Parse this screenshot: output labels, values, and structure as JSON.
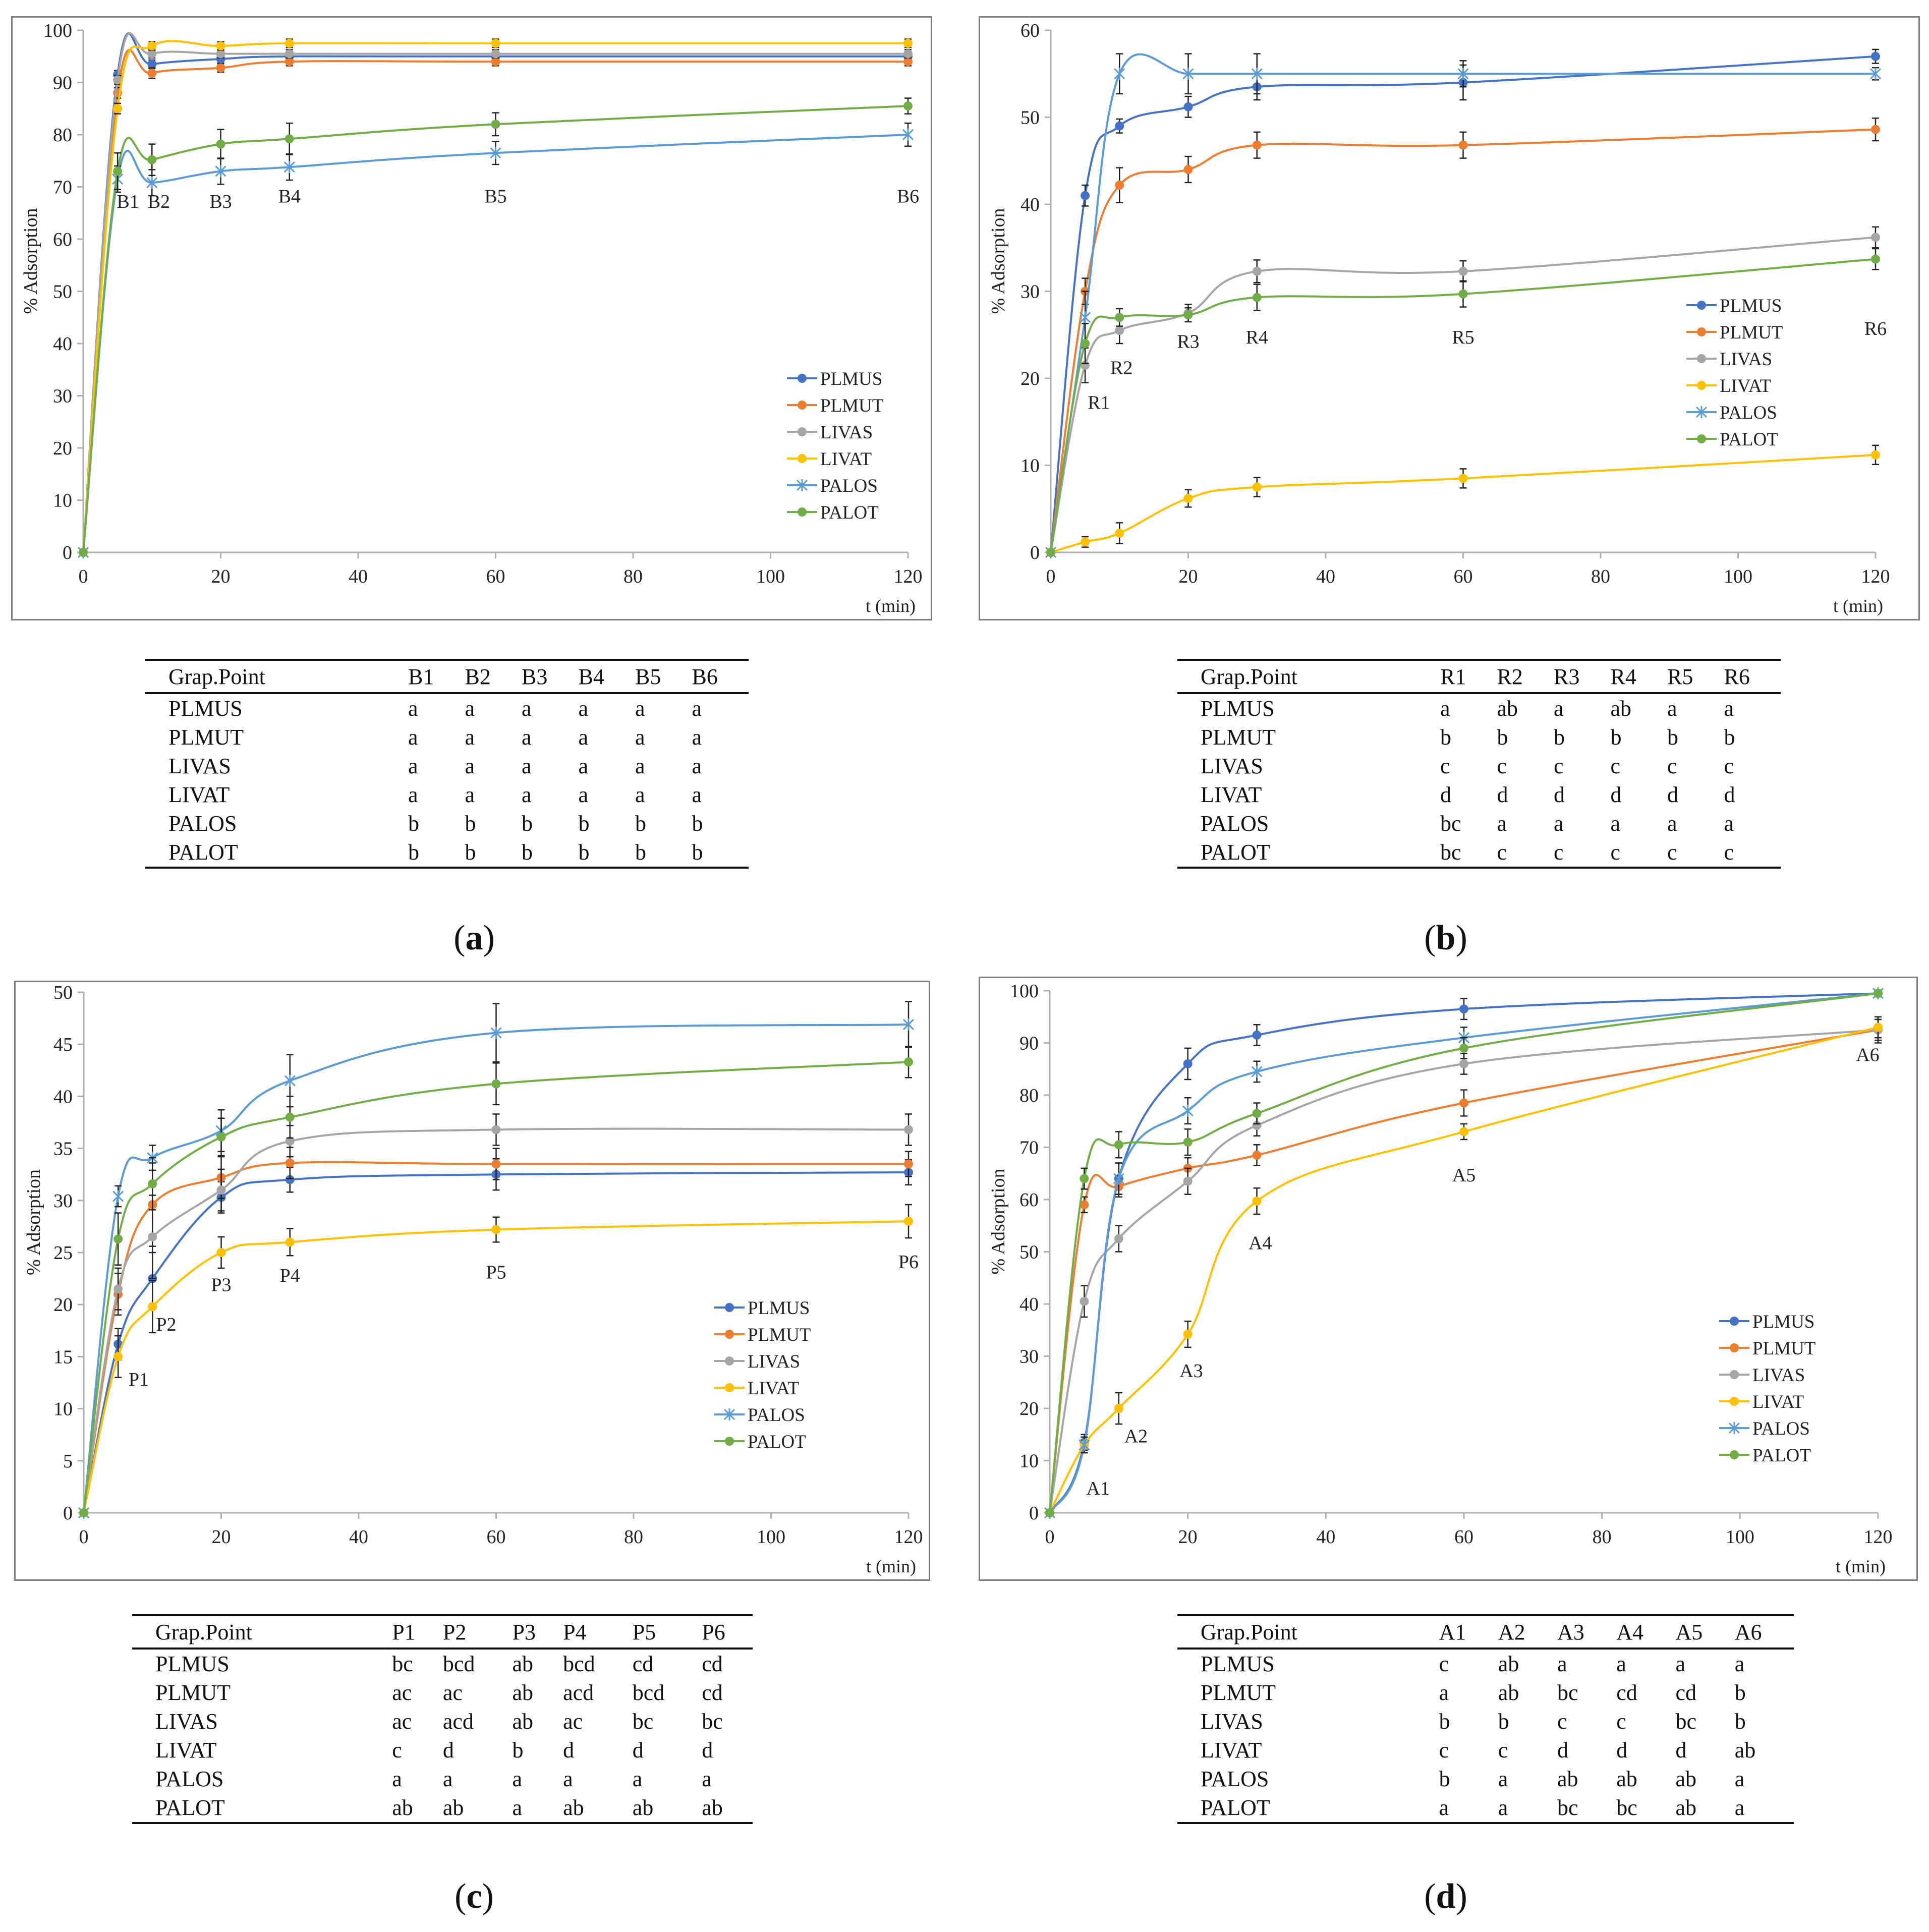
{
  "colors": {
    "PLMUS": "#4472C4",
    "PLMUT": "#ED7D31",
    "LIVAS": "#A5A5A5",
    "LIVAT": "#FFC000",
    "PALOS": "#5B9BD5",
    "PALOT": "#70AD47"
  },
  "chart_data": [
    {
      "type": "line",
      "ylabel": "% Adsorption",
      "xlabel": "t (min)",
      "x": [
        0,
        5,
        10,
        20,
        30,
        60,
        120
      ],
      "xticks": [
        "0",
        "20",
        "40",
        "60",
        "80",
        "100",
        "120"
      ],
      "xtick_values": [
        0,
        20,
        40,
        60,
        80,
        100,
        120
      ],
      "ylim": [
        0,
        100
      ],
      "yticks": [
        "0",
        "10",
        "20",
        "30",
        "40",
        "50",
        "60",
        "70",
        "80",
        "90",
        "100"
      ],
      "ytick_values": [
        0,
        10,
        20,
        30,
        40,
        50,
        60,
        70,
        80,
        90,
        100
      ],
      "legend": "middle-right",
      "series": [
        {
          "name": "PLMUS",
          "marker": "circle",
          "values": [
            0,
            91.5,
            93.5,
            94.5,
            95,
            95,
            95
          ],
          "errors": [
            0,
            0.8,
            0.8,
            0.8,
            0.8,
            0.8,
            0.8
          ]
        },
        {
          "name": "PLMUT",
          "marker": "circle",
          "values": [
            0,
            88,
            91.8,
            92.8,
            94,
            94,
            94
          ],
          "errors": [
            0,
            1,
            1,
            0.8,
            0.8,
            0.8,
            0.8
          ]
        },
        {
          "name": "LIVAS",
          "marker": "circle",
          "values": [
            0,
            90.5,
            95.5,
            95.5,
            95.5,
            95.5,
            95.5
          ],
          "errors": [
            0,
            0.8,
            0.8,
            0.8,
            0.8,
            0.8,
            0.8
          ]
        },
        {
          "name": "LIVAT",
          "marker": "circle",
          "values": [
            0,
            85,
            97,
            97,
            97.5,
            97.5,
            97.5
          ],
          "errors": [
            0,
            1,
            0.8,
            0.8,
            0.8,
            0.8,
            0.8
          ]
        },
        {
          "name": "PALOS",
          "marker": "x",
          "values": [
            0,
            71.5,
            70.8,
            73,
            73.8,
            76.5,
            80
          ],
          "errors": [
            0,
            2.5,
            2.5,
            2.5,
            2.5,
            2.2,
            2.2
          ]
        },
        {
          "name": "PALOT",
          "marker": "circle",
          "values": [
            0,
            73,
            75.2,
            78.2,
            79.2,
            82,
            85.5
          ],
          "errors": [
            0,
            3.5,
            3,
            2.8,
            3,
            2.2,
            1.5
          ]
        }
      ],
      "point_labels": [
        {
          "text": "B1",
          "x": 6.5,
          "y": 66
        },
        {
          "text": "B2",
          "x": 11,
          "y": 66
        },
        {
          "text": "B3",
          "x": 20,
          "y": 66
        },
        {
          "text": "B4",
          "x": 30,
          "y": 67
        },
        {
          "text": "B5",
          "x": 60,
          "y": 67
        },
        {
          "text": "B6",
          "x": 120,
          "y": 67
        }
      ],
      "table": {
        "header": [
          "Grap.Point",
          "B1",
          "B2",
          "B3",
          "B4",
          "B5",
          "B6"
        ],
        "rows": [
          [
            "PLMUS",
            "a",
            "a",
            "a",
            "a",
            "a",
            "a"
          ],
          [
            "PLMUT",
            "a",
            "a",
            "a",
            "a",
            "a",
            "a"
          ],
          [
            "LIVAS",
            "a",
            "a",
            "a",
            "a",
            "a",
            "a"
          ],
          [
            "LIVAT",
            "a",
            "a",
            "a",
            "a",
            "a",
            "a"
          ],
          [
            "PALOS",
            "b",
            "b",
            "b",
            "b",
            "b",
            "b"
          ],
          [
            "PALOT",
            "b",
            "b",
            "b",
            "b",
            "b",
            "b"
          ]
        ]
      },
      "caption": "a"
    },
    {
      "type": "line",
      "ylabel": "% Adsorption",
      "xlabel": "t (min)",
      "x": [
        0,
        5,
        10,
        20,
        30,
        60,
        120
      ],
      "xticks": [
        "0",
        "20",
        "40",
        "60",
        "80",
        "100",
        "120"
      ],
      "xtick_values": [
        0,
        20,
        40,
        60,
        80,
        100,
        120
      ],
      "ylim": [
        0,
        60
      ],
      "yticks": [
        "0",
        "10",
        "20",
        "30",
        "40",
        "50",
        "60"
      ],
      "ytick_values": [
        0,
        10,
        20,
        30,
        40,
        50,
        60
      ],
      "legend": "middle-right",
      "series": [
        {
          "name": "PLMUS",
          "marker": "circle",
          "values": [
            0,
            41,
            49,
            51.2,
            53.5,
            54,
            57
          ],
          "errors": [
            0,
            1.2,
            0.8,
            1.2,
            1.5,
            2,
            0.8
          ]
        },
        {
          "name": "PLMUT",
          "marker": "circle",
          "values": [
            0,
            30,
            42.2,
            44,
            46.8,
            46.8,
            48.6
          ],
          "errors": [
            0,
            1.5,
            2,
            1.5,
            1.5,
            1.5,
            1.3
          ]
        },
        {
          "name": "LIVAS",
          "marker": "circle",
          "values": [
            0,
            21.5,
            25.5,
            27.5,
            32.3,
            32.3,
            36.2
          ],
          "errors": [
            0,
            2,
            1.5,
            1,
            1.3,
            1.2,
            1.2
          ]
        },
        {
          "name": "LIVAT",
          "marker": "circle",
          "values": [
            0,
            1.2,
            2.2,
            6.2,
            7.5,
            8.5,
            11.2
          ],
          "errors": [
            0,
            0.6,
            1.2,
            1,
            1.1,
            1.1,
            1.1
          ]
        },
        {
          "name": "PALOS",
          "marker": "x",
          "values": [
            0,
            27,
            55,
            55,
            55,
            55,
            55
          ],
          "errors": [
            0,
            3,
            2.3,
            2.3,
            2.3,
            1.5,
            0.7
          ]
        },
        {
          "name": "PALOT",
          "marker": "circle",
          "values": [
            0,
            24,
            27,
            27.3,
            29.3,
            29.7,
            33.7
          ],
          "errors": [
            0,
            2.3,
            1,
            0.8,
            1.5,
            1.5,
            1.2
          ]
        }
      ],
      "point_labels": [
        {
          "text": "R1",
          "x": 7,
          "y": 16.5
        },
        {
          "text": "R2",
          "x": 10.3,
          "y": 20.5
        },
        {
          "text": "R3",
          "x": 20,
          "y": 23.5
        },
        {
          "text": "R4",
          "x": 30,
          "y": 24
        },
        {
          "text": "R5",
          "x": 60,
          "y": 24
        },
        {
          "text": "R6",
          "x": 120,
          "y": 25
        }
      ],
      "table": {
        "header": [
          "Grap.Point",
          "R1",
          "R2",
          "R3",
          "R4",
          "R5",
          "R6"
        ],
        "rows": [
          [
            "PLMUS",
            "a",
            "ab",
            "a",
            "ab",
            "a",
            "a"
          ],
          [
            "PLMUT",
            "b",
            "b",
            "b",
            "b",
            "b",
            "b"
          ],
          [
            "LIVAS",
            "c",
            "c",
            "c",
            "c",
            "c",
            "c"
          ],
          [
            "LIVAT",
            "d",
            "d",
            "d",
            "d",
            "d",
            "d"
          ],
          [
            "PALOS",
            "bc",
            "a",
            "a",
            "a",
            "a",
            "a"
          ],
          [
            "PALOT",
            "bc",
            "c",
            "c",
            "c",
            "c",
            "c"
          ]
        ]
      },
      "caption": "b"
    },
    {
      "type": "line",
      "ylabel": "% Adsorption",
      "xlabel": "t (min)",
      "x": [
        0,
        5,
        10,
        20,
        30,
        60,
        120
      ],
      "xticks": [
        "0",
        "20",
        "40",
        "60",
        "80",
        "100",
        "120"
      ],
      "xtick_values": [
        0,
        20,
        40,
        60,
        80,
        100,
        120
      ],
      "ylim": [
        0,
        50
      ],
      "yticks": [
        "0",
        "5",
        "10",
        "15",
        "20",
        "25",
        "30",
        "35",
        "40",
        "45",
        "50"
      ],
      "ytick_values": [
        0,
        5,
        10,
        15,
        20,
        25,
        30,
        35,
        40,
        45,
        50
      ],
      "legend": "middle-right",
      "series": [
        {
          "name": "PLMUS",
          "marker": "circle",
          "values": [
            0,
            16.2,
            22.5,
            30.3,
            32,
            32.5,
            32.7
          ],
          "errors": [
            0,
            1.5,
            2.5,
            1.5,
            1.2,
            1.5,
            1.2
          ]
        },
        {
          "name": "PLMUT",
          "marker": "circle",
          "values": [
            0,
            21,
            29.6,
            32.2,
            33.6,
            33.5,
            33.5
          ],
          "errors": [
            0,
            2,
            4,
            2,
            1.5,
            1.5,
            1.2
          ]
        },
        {
          "name": "LIVAS",
          "marker": "circle",
          "values": [
            0,
            21.5,
            26.5,
            31,
            35.7,
            36.8,
            36.8
          ],
          "errors": [
            0,
            2,
            4,
            2,
            1.5,
            1.5,
            1.5
          ]
        },
        {
          "name": "LIVAT",
          "marker": "circle",
          "values": [
            0,
            15,
            19.8,
            25,
            26,
            27.2,
            28
          ],
          "errors": [
            0,
            2,
            2.5,
            1.5,
            1.3,
            1.2,
            1.6
          ]
        },
        {
          "name": "PALOS",
          "marker": "x",
          "values": [
            0,
            30.4,
            34.1,
            36.7,
            41.5,
            46.1,
            46.9
          ],
          "errors": [
            0,
            1,
            1.2,
            2,
            2.5,
            2.8,
            2.2
          ]
        },
        {
          "name": "PALOT",
          "marker": "circle",
          "values": [
            0,
            26.3,
            31.6,
            36.1,
            38,
            41.2,
            43.3
          ],
          "errors": [
            0,
            2.5,
            2.5,
            1.8,
            2,
            2,
            1.5
          ]
        }
      ],
      "point_labels": [
        {
          "text": "P1",
          "x": 8,
          "y": 12.2
        },
        {
          "text": "P2",
          "x": 12,
          "y": 17.5
        },
        {
          "text": "P3",
          "x": 20,
          "y": 21.3
        },
        {
          "text": "P4",
          "x": 30,
          "y": 22.2
        },
        {
          "text": "P5",
          "x": 60,
          "y": 22.5
        },
        {
          "text": "P6",
          "x": 120,
          "y": 23.5
        }
      ],
      "table": {
        "header": [
          "Grap.Point",
          "P1",
          "P2",
          "P3",
          "P4",
          "P5",
          "P6"
        ],
        "rows": [
          [
            "PLMUS",
            "bc",
            "bcd",
            "ab",
            "bcd",
            "cd",
            "cd"
          ],
          [
            "PLMUT",
            "ac",
            "ac",
            "ab",
            "acd",
            "bcd",
            "cd"
          ],
          [
            "LIVAS",
            "ac",
            "acd",
            "ab",
            "ac",
            "bc",
            "bc"
          ],
          [
            "LIVAT",
            "c",
            "d",
            "b",
            "d",
            "d",
            "d"
          ],
          [
            "PALOS",
            "a",
            "a",
            "a",
            "a",
            "a",
            "a"
          ],
          [
            "PALOT",
            "ab",
            "ab",
            "a",
            "ab",
            "ab",
            "ab"
          ]
        ]
      },
      "caption": "c"
    },
    {
      "type": "line",
      "ylabel": "% Adsorption",
      "xlabel": "t (min)",
      "x": [
        0,
        5,
        10,
        20,
        30,
        60,
        120
      ],
      "xticks": [
        "0",
        "20",
        "40",
        "60",
        "80",
        "100",
        "120"
      ],
      "xtick_values": [
        0,
        20,
        40,
        60,
        80,
        100,
        120
      ],
      "ylim": [
        0,
        100
      ],
      "yticks": [
        "0",
        "10",
        "20",
        "30",
        "40",
        "50",
        "60",
        "70",
        "80",
        "90",
        "100"
      ],
      "ytick_values": [
        0,
        10,
        20,
        30,
        40,
        50,
        60,
        70,
        80,
        90,
        100
      ],
      "legend": "middle-right",
      "series": [
        {
          "name": "PLMUS",
          "marker": "circle",
          "values": [
            0,
            13.5,
            64,
            86,
            91.5,
            96.5,
            99.5
          ],
          "errors": [
            0,
            1.5,
            3,
            3,
            2,
            2,
            0.5
          ]
        },
        {
          "name": "PLMUT",
          "marker": "circle",
          "values": [
            0,
            59,
            62.5,
            66,
            68.5,
            78.5,
            92.5
          ],
          "errors": [
            0,
            1.5,
            2,
            2,
            2,
            2.5,
            2.5
          ]
        },
        {
          "name": "LIVAS",
          "marker": "circle",
          "values": [
            0,
            40.5,
            52.5,
            63.5,
            74.2,
            86,
            92.5
          ],
          "errors": [
            0,
            3,
            2.5,
            2.5,
            2,
            2,
            2
          ]
        },
        {
          "name": "LIVAT",
          "marker": "circle",
          "values": [
            0,
            13,
            20,
            34.2,
            59.7,
            73,
            93
          ],
          "errors": [
            0,
            1.5,
            3,
            2.5,
            2.5,
            1.5,
            2
          ]
        },
        {
          "name": "PALOS",
          "marker": "x",
          "values": [
            0,
            13,
            64,
            77,
            84.5,
            91,
            99.5
          ],
          "errors": [
            0,
            1.5,
            3,
            2.5,
            2,
            2,
            0.5
          ]
        },
        {
          "name": "PALOT",
          "marker": "circle",
          "values": [
            0,
            64,
            70.5,
            71,
            76.5,
            89,
            99.5
          ],
          "errors": [
            0,
            2,
            2.5,
            2.5,
            2,
            2,
            0.5
          ]
        }
      ],
      "point_labels": [
        {
          "text": "A1",
          "x": 7,
          "y": 3.5
        },
        {
          "text": "A2",
          "x": 12.5,
          "y": 13.5
        },
        {
          "text": "A3",
          "x": 20.5,
          "y": 26
        },
        {
          "text": "A4",
          "x": 30.5,
          "y": 50.5
        },
        {
          "text": "A5",
          "x": 60,
          "y": 63.5
        },
        {
          "text": "A6",
          "x": 118.5,
          "y": 86.5
        }
      ],
      "table": {
        "header": [
          "Grap.Point",
          "A1",
          "A2",
          "A3",
          "A4",
          "A5",
          "A6"
        ],
        "rows": [
          [
            "PLMUS",
            "c",
            "ab",
            "a",
            "a",
            "a",
            "a"
          ],
          [
            "PLMUT",
            "a",
            "ab",
            "bc",
            "cd",
            "cd",
            "b"
          ],
          [
            "LIVAS",
            "b",
            "b",
            "c",
            "c",
            "bc",
            "b"
          ],
          [
            "LIVAT",
            "c",
            "c",
            "d",
            "d",
            "d",
            "ab"
          ],
          [
            "PALOS",
            "b",
            "a",
            "ab",
            "ab",
            "ab",
            "a"
          ],
          [
            "PALOT",
            "a",
            "a",
            "bc",
            "bc",
            "ab",
            "a"
          ]
        ]
      },
      "caption": "d"
    }
  ]
}
